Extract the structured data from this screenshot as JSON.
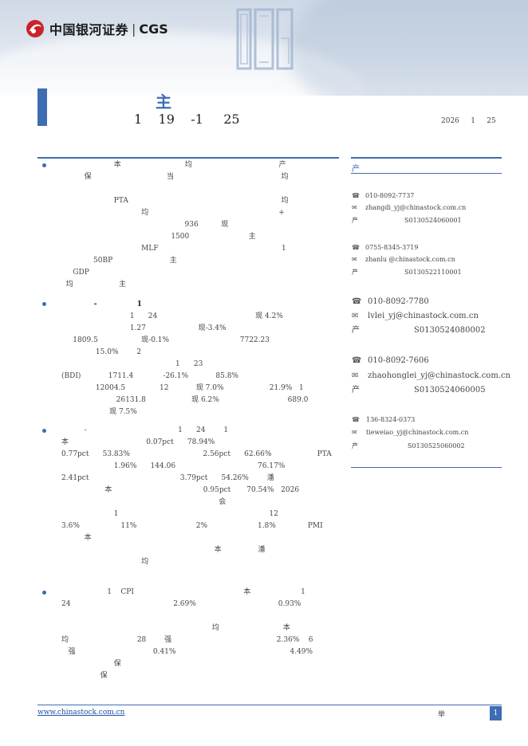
{
  "header": {
    "brand_cn": "中国银河证券",
    "brand_sep": "|",
    "brand_en": "CGS"
  },
  "report": {
    "title": "主",
    "subtitle": "1    19    -1     25",
    "date": "2026     1     25"
  },
  "analyst_header": "产",
  "bullets": [
    {
      "lines": [
        "                       本                            均                                      产",
        "          保                                 当                                               均",
        "",
        "                       PTA                                                                   均",
        "                                   均                                                         +",
        "                                                      936          现",
        "                                                1500                          主",
        "                                   MLF                                                      1",
        "              50BP                         主",
        "     GDP",
        "  均                    主"
      ]
    },
    {
      "lines": [
        "             -                1",
        "                              1      24                                           现 4.2%",
        "                              1.27                       现-3.4%",
        "     1809.5                   现-0.1%                               7722.23",
        "               15.0%        2",
        "                                                  1      23",
        "(BDI)            1711.4             -26.1%            85.8%",
        "               12004.5               12            现 7.0%                    21.9%   1",
        "                        26131.8                    现 6.2%                              689.0",
        "                     现 7.5%"
      ]
    },
    {
      "lines": [
        "          -                                        1      24        1",
        "本                                  0.07pct      78.94%",
        "0.77pct      53.83%                                2.56pct      62.66%                    PTA",
        "                       1.96%      144.06                                    76.17%",
        "2.41pct                                        3.79pct      54.26%        潘",
        "                   本                                        0.95pct       70.54%   2026",
        "                                                                     会",
        "                       1                                                                  12",
        "3.6%                  11%                          2%                      1.8%              PMI",
        "          本",
        "                                                                   本                潘",
        "                                   均"
      ]
    },
    {
      "lines": [
        "                    1    CPI                                                本                      1",
        "24                                             2.69%                                    0.93%",
        "",
        "                                                                  均                            本",
        "均                              28        强                                              2.36%    6",
        "   强                                  0.41%                                                  4.49%",
        "                       保",
        "                 保"
      ]
    }
  ],
  "analysts": [
    {
      "phone": "010-8092-7737",
      "email": "zhangdi_yj@chinastock.com.cn",
      "cert_label": "产",
      "cert": "S0130524060001"
    },
    {
      "phone": "0755-8345-3719",
      "email": "zhanlu @chinastock.com.cn",
      "cert_label": "产",
      "cert": "S0130522110001"
    },
    {
      "phone": "010-8092-7780",
      "email": "lvlei_yj@chinastock.com.cn",
      "cert_label": "产",
      "cert": "S0130524080002"
    },
    {
      "phone": "010-8092-7606",
      "email": "zhaohonglei_yj@chinastock.com.cn",
      "cert_label": "产",
      "cert": "S0130524060005"
    },
    {
      "phone": "136-8324-0373",
      "email": "tieweiao_yj@chinastock.com.cn",
      "cert_label": "产",
      "cert": "S0130525060002"
    }
  ],
  "footer": {
    "website": "www.chinastock.com.cn",
    "note": "举",
    "page": "1"
  },
  "colors": {
    "accent": "#3f6db3",
    "brand_red": "#c8242b"
  },
  "icons": {
    "phone": "phone-icon",
    "email": "mail-icon"
  }
}
